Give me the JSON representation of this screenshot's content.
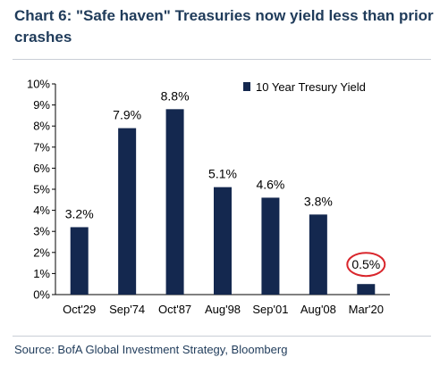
{
  "title": "Chart 6: \"Safe haven\" Treasuries now yield less than prior crashes",
  "source": "Source: BofA Global Investment Strategy, Bloomberg",
  "colors": {
    "bar": "#14284f",
    "title": "#1f3b5a",
    "highlight": "#d9262c",
    "axis": "#000000"
  },
  "chart_data": {
    "type": "bar",
    "categories": [
      "Oct'29",
      "Sep'74",
      "Oct'87",
      "Aug'98",
      "Sep'01",
      "Aug'08",
      "Mar'20"
    ],
    "series": [
      {
        "name": "10 Year Tresury Yield",
        "values": [
          3.2,
          7.9,
          8.8,
          5.1,
          4.6,
          3.8,
          0.5
        ]
      }
    ],
    "data_labels": [
      "3.2%",
      "7.9%",
      "8.8%",
      "5.1%",
      "4.6%",
      "3.8%",
      "0.5%"
    ],
    "y_ticks": [
      "0%",
      "1%",
      "2%",
      "3%",
      "4%",
      "5%",
      "6%",
      "7%",
      "8%",
      "9%",
      "10%"
    ],
    "ylim": [
      0,
      10
    ],
    "legend_position": "top-right",
    "grid": false,
    "highlight": "Mar'20"
  }
}
